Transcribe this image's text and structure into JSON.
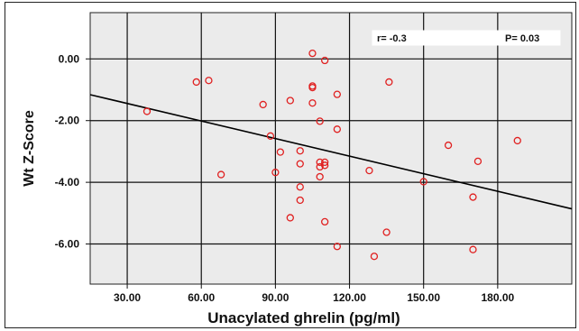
{
  "chart_data": {
    "type": "scatter",
    "xlabel": "Unacylated ghrelin (pg/ml)",
    "ylabel": "Wt Z-Score",
    "xlim": [
      15,
      210
    ],
    "ylim": [
      -7.3,
      1.5
    ],
    "x_ticks": [
      "30.00",
      "60.00",
      "90.00",
      "120.00",
      "150.00",
      "180.00"
    ],
    "y_ticks": [
      "0.00",
      "-2.00",
      "-4.00",
      "-6.00"
    ],
    "x_tick_values": [
      30,
      60,
      90,
      120,
      150,
      180
    ],
    "y_tick_values": [
      0,
      -2,
      -4,
      -6
    ],
    "grid": true,
    "marker_color": "#e02020",
    "line_color": "#000000",
    "background_color": "#ebebeb",
    "annotation": {
      "r_text": "r= -0.3",
      "p_text": "P= 0.03",
      "placement": "top-right"
    },
    "regression_line": {
      "x": [
        15,
        210
      ],
      "y": [
        -1.16,
        -4.86
      ]
    },
    "points": [
      {
        "x": 38,
        "y": -1.7
      },
      {
        "x": 58,
        "y": -0.75
      },
      {
        "x": 63,
        "y": -0.7
      },
      {
        "x": 68,
        "y": -3.75
      },
      {
        "x": 85,
        "y": -1.48
      },
      {
        "x": 88,
        "y": -2.5
      },
      {
        "x": 90,
        "y": -3.68
      },
      {
        "x": 92,
        "y": -3.02
      },
      {
        "x": 96,
        "y": -1.35
      },
      {
        "x": 96,
        "y": -5.15
      },
      {
        "x": 100,
        "y": -2.98
      },
      {
        "x": 100,
        "y": -3.4
      },
      {
        "x": 100,
        "y": -4.15
      },
      {
        "x": 100,
        "y": -4.58
      },
      {
        "x": 105,
        "y": 0.18
      },
      {
        "x": 105,
        "y": -0.88
      },
      {
        "x": 105,
        "y": -0.93
      },
      {
        "x": 105,
        "y": -1.43
      },
      {
        "x": 108,
        "y": -2.02
      },
      {
        "x": 108,
        "y": -3.35
      },
      {
        "x": 108,
        "y": -3.5
      },
      {
        "x": 108,
        "y": -3.82
      },
      {
        "x": 110,
        "y": -0.05
      },
      {
        "x": 110,
        "y": -3.35
      },
      {
        "x": 110,
        "y": -3.45
      },
      {
        "x": 110,
        "y": -5.28
      },
      {
        "x": 115,
        "y": -1.15
      },
      {
        "x": 115,
        "y": -2.28
      },
      {
        "x": 115,
        "y": -6.08
      },
      {
        "x": 128,
        "y": -3.62
      },
      {
        "x": 130,
        "y": -6.4
      },
      {
        "x": 135,
        "y": -5.62
      },
      {
        "x": 136,
        "y": -0.75
      },
      {
        "x": 150,
        "y": -3.98
      },
      {
        "x": 160,
        "y": -2.8
      },
      {
        "x": 170,
        "y": -4.48
      },
      {
        "x": 170,
        "y": -6.18
      },
      {
        "x": 172,
        "y": -3.32
      },
      {
        "x": 188,
        "y": -2.65
      }
    ]
  }
}
